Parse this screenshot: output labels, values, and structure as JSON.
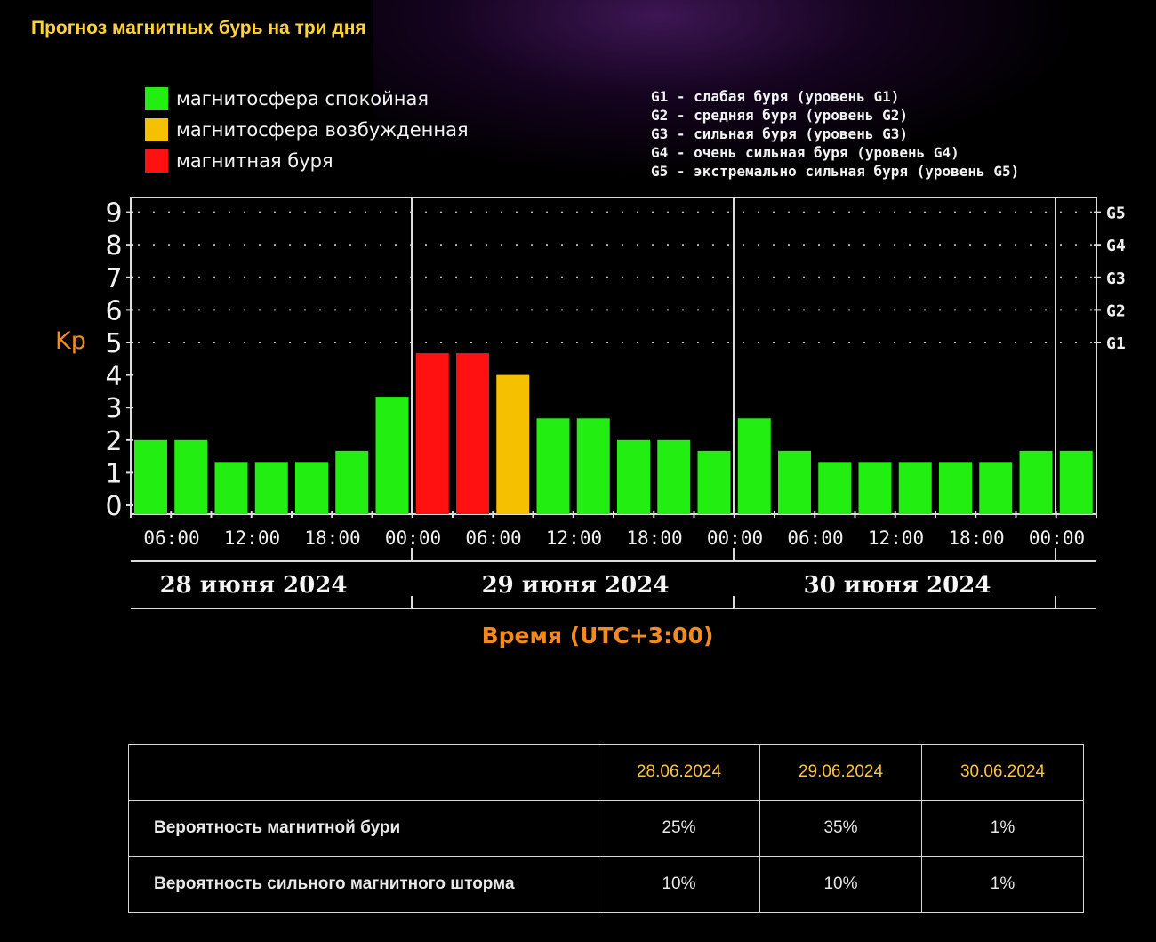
{
  "page": {
    "title": "Прогноз магнитных бурь на три дня"
  },
  "legend": [
    {
      "label": "магнитосфера спокойная",
      "color": "#22ee11"
    },
    {
      "label": "магнитосфера возбужденная",
      "color": "#f5c000"
    },
    {
      "label": "магнитная буря",
      "color": "#ff1111"
    }
  ],
  "storm_levels": [
    "G1 - слабая буря (уровень G1)",
    "G2 - средняя буря (уровень G2)",
    "G3 - сильная буря (уровень G3)",
    "G4 - очень сильная буря (уровень G4)",
    "G5 - экстремально сильная буря (уровень G5)"
  ],
  "chart_data": {
    "type": "bar",
    "ylabel": "Kp",
    "xlabel": "Время (UTC+3:00)",
    "ylim": [
      0,
      9
    ],
    "yticks": [
      0,
      1,
      2,
      3,
      4,
      5,
      6,
      7,
      8,
      9
    ],
    "right_ticks": [
      {
        "value": 5,
        "label": "G1"
      },
      {
        "value": 6,
        "label": "G2"
      },
      {
        "value": 7,
        "label": "G3"
      },
      {
        "value": 8,
        "label": "G4"
      },
      {
        "value": 9,
        "label": "G5"
      }
    ],
    "grid": true,
    "time_ticks": [
      "06:00",
      "12:00",
      "18:00",
      "00:00",
      "06:00",
      "12:00",
      "18:00",
      "00:00",
      "06:00",
      "12:00",
      "18:00",
      "00:00"
    ],
    "days": [
      "28 июня 2024",
      "29 июня 2024",
      "30 июня 2024"
    ],
    "values": [
      2.0,
      2.0,
      1.33,
      1.33,
      1.33,
      1.67,
      3.33,
      4.67,
      4.67,
      4.0,
      2.67,
      2.67,
      2.0,
      2.0,
      1.67,
      2.67,
      1.67,
      1.33,
      1.33,
      1.33,
      1.33,
      1.33,
      1.67,
      1.67
    ],
    "levels": [
      "quiet",
      "quiet",
      "quiet",
      "quiet",
      "quiet",
      "quiet",
      "quiet",
      "storm",
      "storm",
      "active",
      "quiet",
      "quiet",
      "quiet",
      "quiet",
      "quiet",
      "quiet",
      "quiet",
      "quiet",
      "quiet",
      "quiet",
      "quiet",
      "quiet",
      "quiet",
      "quiet"
    ],
    "colors": {
      "quiet": "#22ee11",
      "active": "#f5c000",
      "storm": "#ff1111"
    }
  },
  "table": {
    "dates": [
      "28.06.2024",
      "29.06.2024",
      "30.06.2024"
    ],
    "rows": [
      {
        "label": "Вероятность магнитной бури",
        "values": [
          "25%",
          "35%",
          "1%"
        ]
      },
      {
        "label": "Вероятность сильного магнитного шторма",
        "values": [
          "10%",
          "10%",
          "1%"
        ]
      }
    ]
  }
}
